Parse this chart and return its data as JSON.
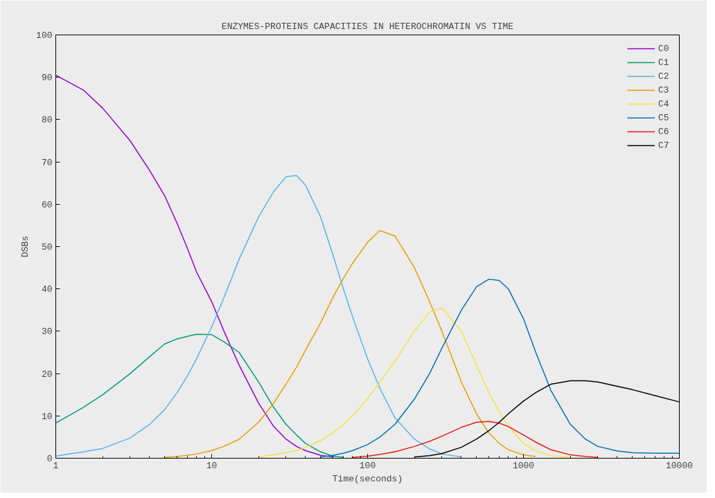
{
  "chart_data": {
    "type": "line",
    "title": "ENZYMES-PROTEINS CAPACITIES IN HETEROCHROMATIN VS TIME",
    "xlabel": "Time(seconds)",
    "ylabel": "DSBs",
    "log": "x",
    "xlim": [
      1,
      10000
    ],
    "xticks": [
      1,
      10,
      100,
      1000,
      10000
    ],
    "ylim": [
      0,
      100
    ],
    "yticks": [
      0,
      10,
      20,
      30,
      40,
      50,
      60,
      70,
      80,
      90,
      100
    ],
    "grid": false,
    "legend": "top right",
    "x": [
      1,
      1.5,
      2,
      3,
      4,
      5,
      6,
      7,
      8,
      10,
      12,
      15,
      20,
      25,
      30,
      35,
      40,
      50,
      60,
      70,
      80,
      100,
      120,
      150,
      200,
      250,
      300,
      400,
      500,
      600,
      700,
      800,
      1000,
      1200,
      1500,
      2000,
      2500,
      3000,
      4000,
      5000,
      7000,
      10000
    ],
    "series": [
      {
        "name": "C0",
        "color": "#9400d3",
        "values": [
          90.5,
          87,
          82.7,
          75,
          68,
          62,
          55.5,
          49.5,
          44,
          37,
          30,
          22,
          13,
          7.5,
          4.5,
          2.8,
          1.8,
          0.7,
          0.3,
          null,
          null,
          null,
          null,
          null,
          null,
          null,
          null,
          null,
          null,
          null,
          null,
          null,
          null,
          null,
          null,
          null,
          null,
          null,
          null,
          null,
          null,
          null
        ]
      },
      {
        "name": "C1",
        "color": "#009e73",
        "values": [
          8.3,
          12,
          15,
          20,
          24,
          27,
          28.2,
          28.8,
          29.3,
          29.2,
          27.5,
          25,
          18,
          12,
          8,
          5.5,
          3.5,
          1.5,
          0.5,
          0.2,
          null,
          null,
          null,
          null,
          null,
          null,
          null,
          null,
          null,
          null,
          null,
          null,
          null,
          null,
          null,
          null,
          null,
          null,
          null,
          null,
          null,
          null
        ]
      },
      {
        "name": "C2",
        "color": "#56b4e9",
        "values": [
          0.5,
          1.5,
          2.3,
          4.8,
          8,
          11.5,
          15.5,
          19.5,
          23.5,
          31,
          38,
          47,
          57,
          63,
          66.5,
          66.8,
          64.5,
          57,
          48,
          40,
          33.5,
          23.5,
          16.5,
          9.5,
          4.5,
          2.2,
          1,
          0.3,
          null,
          null,
          null,
          null,
          null,
          null,
          null,
          null,
          null,
          null,
          null,
          null,
          null,
          null
        ]
      },
      {
        "name": "C3",
        "color": "#e69f00",
        "values": [
          null,
          null,
          null,
          null,
          null,
          0.2,
          0.4,
          0.7,
          1,
          1.8,
          2.8,
          4.5,
          8.5,
          13,
          17.5,
          21.5,
          25.5,
          32,
          38,
          42.5,
          46,
          51,
          53.8,
          52.5,
          45,
          37,
          30,
          18,
          10.5,
          6,
          3.5,
          2,
          0.8,
          0.4,
          null,
          null,
          null,
          null,
          null,
          null,
          null,
          null
        ]
      },
      {
        "name": "C4",
        "color": "#f0e442",
        "values": [
          null,
          null,
          null,
          null,
          null,
          null,
          null,
          null,
          null,
          null,
          null,
          null,
          0.3,
          0.8,
          1.3,
          1.8,
          2.5,
          4.2,
          6,
          8,
          10,
          14,
          18,
          23,
          30,
          34.5,
          35.5,
          30,
          22,
          15.5,
          11,
          7.5,
          3.5,
          1.7,
          0.6,
          0.2,
          null,
          null,
          null,
          null,
          null,
          null
        ]
      },
      {
        "name": "C5",
        "color": "#0072b2",
        "values": [
          null,
          null,
          null,
          null,
          null,
          null,
          null,
          null,
          null,
          null,
          null,
          null,
          null,
          null,
          null,
          null,
          null,
          0.3,
          0.7,
          1.2,
          1.8,
          3.2,
          5,
          8,
          14,
          20,
          26,
          35,
          40.5,
          42.3,
          42,
          40,
          33,
          25,
          16,
          8,
          4.5,
          2.8,
          1.7,
          1.3,
          1.2,
          1.2
        ]
      },
      {
        "name": "C6",
        "color": "#e51e10",
        "values": [
          null,
          null,
          null,
          null,
          null,
          null,
          null,
          null,
          null,
          null,
          null,
          null,
          null,
          null,
          null,
          null,
          null,
          null,
          null,
          null,
          0.2,
          0.5,
          0.9,
          1.5,
          2.8,
          4,
          5.2,
          7.3,
          8.5,
          8.7,
          8.3,
          7.5,
          5.5,
          3.8,
          2,
          0.8,
          0.4,
          0.2,
          null,
          null,
          null,
          null
        ]
      },
      {
        "name": "C7",
        "color": "#000000",
        "values": [
          null,
          null,
          null,
          null,
          null,
          null,
          null,
          null,
          null,
          null,
          null,
          null,
          null,
          null,
          null,
          null,
          null,
          null,
          null,
          null,
          null,
          null,
          null,
          null,
          0.3,
          0.6,
          1.1,
          2.6,
          4.5,
          6.5,
          8.5,
          10.5,
          13.5,
          15.5,
          17.5,
          18.3,
          18.3,
          18,
          17,
          16.2,
          14.8,
          13.3
        ]
      }
    ]
  }
}
